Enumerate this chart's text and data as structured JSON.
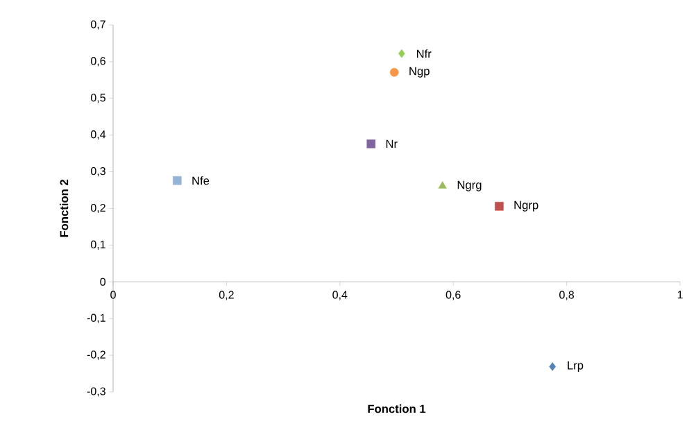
{
  "chart_data": {
    "type": "scatter",
    "xlabel": "Fonction 1",
    "ylabel": "Fonction 2",
    "xlim": [
      0,
      1
    ],
    "ylim": [
      -0.3,
      0.7
    ],
    "xticks": [
      {
        "value": 0,
        "label": "0"
      },
      {
        "value": 0.2,
        "label": "0,2"
      },
      {
        "value": 0.4,
        "label": "0,4"
      },
      {
        "value": 0.6,
        "label": "0,6"
      },
      {
        "value": 0.8,
        "label": "0,8"
      },
      {
        "value": 1,
        "label": "1"
      }
    ],
    "yticks": [
      {
        "value": -0.3,
        "label": "-0,3"
      },
      {
        "value": -0.2,
        "label": "-0,2"
      },
      {
        "value": -0.1,
        "label": "-0,1"
      },
      {
        "value": 0,
        "label": "0"
      },
      {
        "value": 0.1,
        "label": "0,1"
      },
      {
        "value": 0.2,
        "label": "0,2"
      },
      {
        "value": 0.3,
        "label": "0,3"
      },
      {
        "value": 0.4,
        "label": "0,4"
      },
      {
        "value": 0.5,
        "label": "0,5"
      },
      {
        "value": 0.6,
        "label": "0,6"
      },
      {
        "value": 0.7,
        "label": "0,7"
      }
    ],
    "grid": false,
    "legend": false,
    "series": [
      {
        "name": "Nfr",
        "color": "#92d050",
        "marker": "diamond",
        "x": [
          0.509
        ],
        "values": [
          0.622
        ]
      },
      {
        "name": "Ngp",
        "color": "#f79646",
        "marker": "circle",
        "x": [
          0.496
        ],
        "values": [
          0.571
        ]
      },
      {
        "name": "Nr",
        "color": "#8064a2",
        "marker": "square",
        "x": [
          0.455
        ],
        "values": [
          0.376
        ]
      },
      {
        "name": "Nfe",
        "color": "#95b3d7",
        "marker": "square",
        "x": [
          0.113
        ],
        "values": [
          0.276
        ]
      },
      {
        "name": "Ngrg",
        "color": "#9bbb59",
        "marker": "triangle",
        "x": [
          0.581
        ],
        "values": [
          0.261
        ]
      },
      {
        "name": "Ngrp",
        "color": "#c0504d",
        "marker": "square",
        "x": [
          0.681
        ],
        "values": [
          0.206
        ]
      },
      {
        "name": "Lrp",
        "color": "#4f81bd",
        "marker": "diamond",
        "x": [
          0.775
        ],
        "values": [
          -0.231
        ]
      }
    ]
  }
}
